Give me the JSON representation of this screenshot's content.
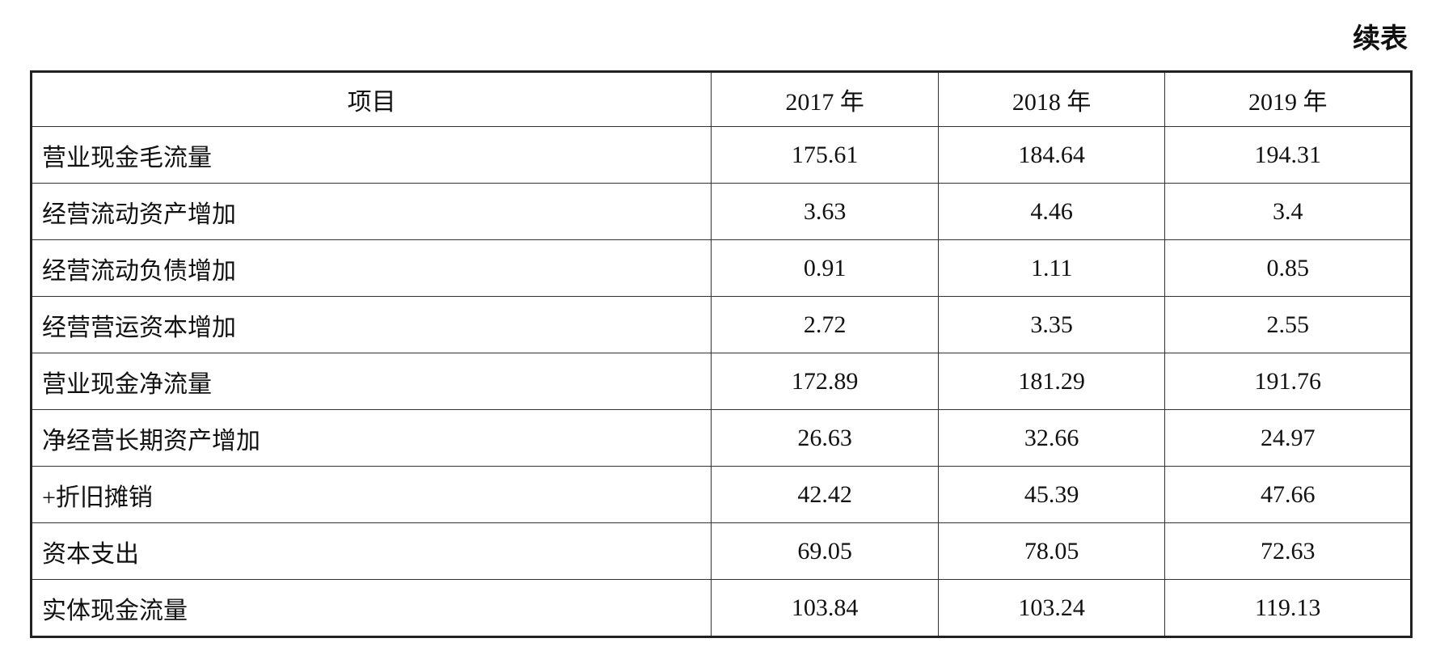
{
  "caption": "续表",
  "table": {
    "header": [
      "项目",
      "2017 年",
      "2018 年",
      "2019 年"
    ],
    "rows": [
      [
        "营业现金毛流量",
        "175.61",
        "184.64",
        "194.31"
      ],
      [
        "经营流动资产增加",
        "3.63",
        "4.46",
        "3.4"
      ],
      [
        "经营流动负债增加",
        "0.91",
        "1.11",
        "0.85"
      ],
      [
        "经营营运资本增加",
        "2.72",
        "3.35",
        "2.55"
      ],
      [
        "营业现金净流量",
        "172.89",
        "181.29",
        "191.76"
      ],
      [
        "净经营长期资产增加",
        "26.63",
        "32.66",
        "24.97"
      ],
      [
        "+折旧摊销",
        "42.42",
        "45.39",
        "47.66"
      ],
      [
        "资本支出",
        "69.05",
        "78.05",
        "72.63"
      ],
      [
        "实体现金流量",
        "103.84",
        "103.24",
        "119.13"
      ]
    ]
  }
}
